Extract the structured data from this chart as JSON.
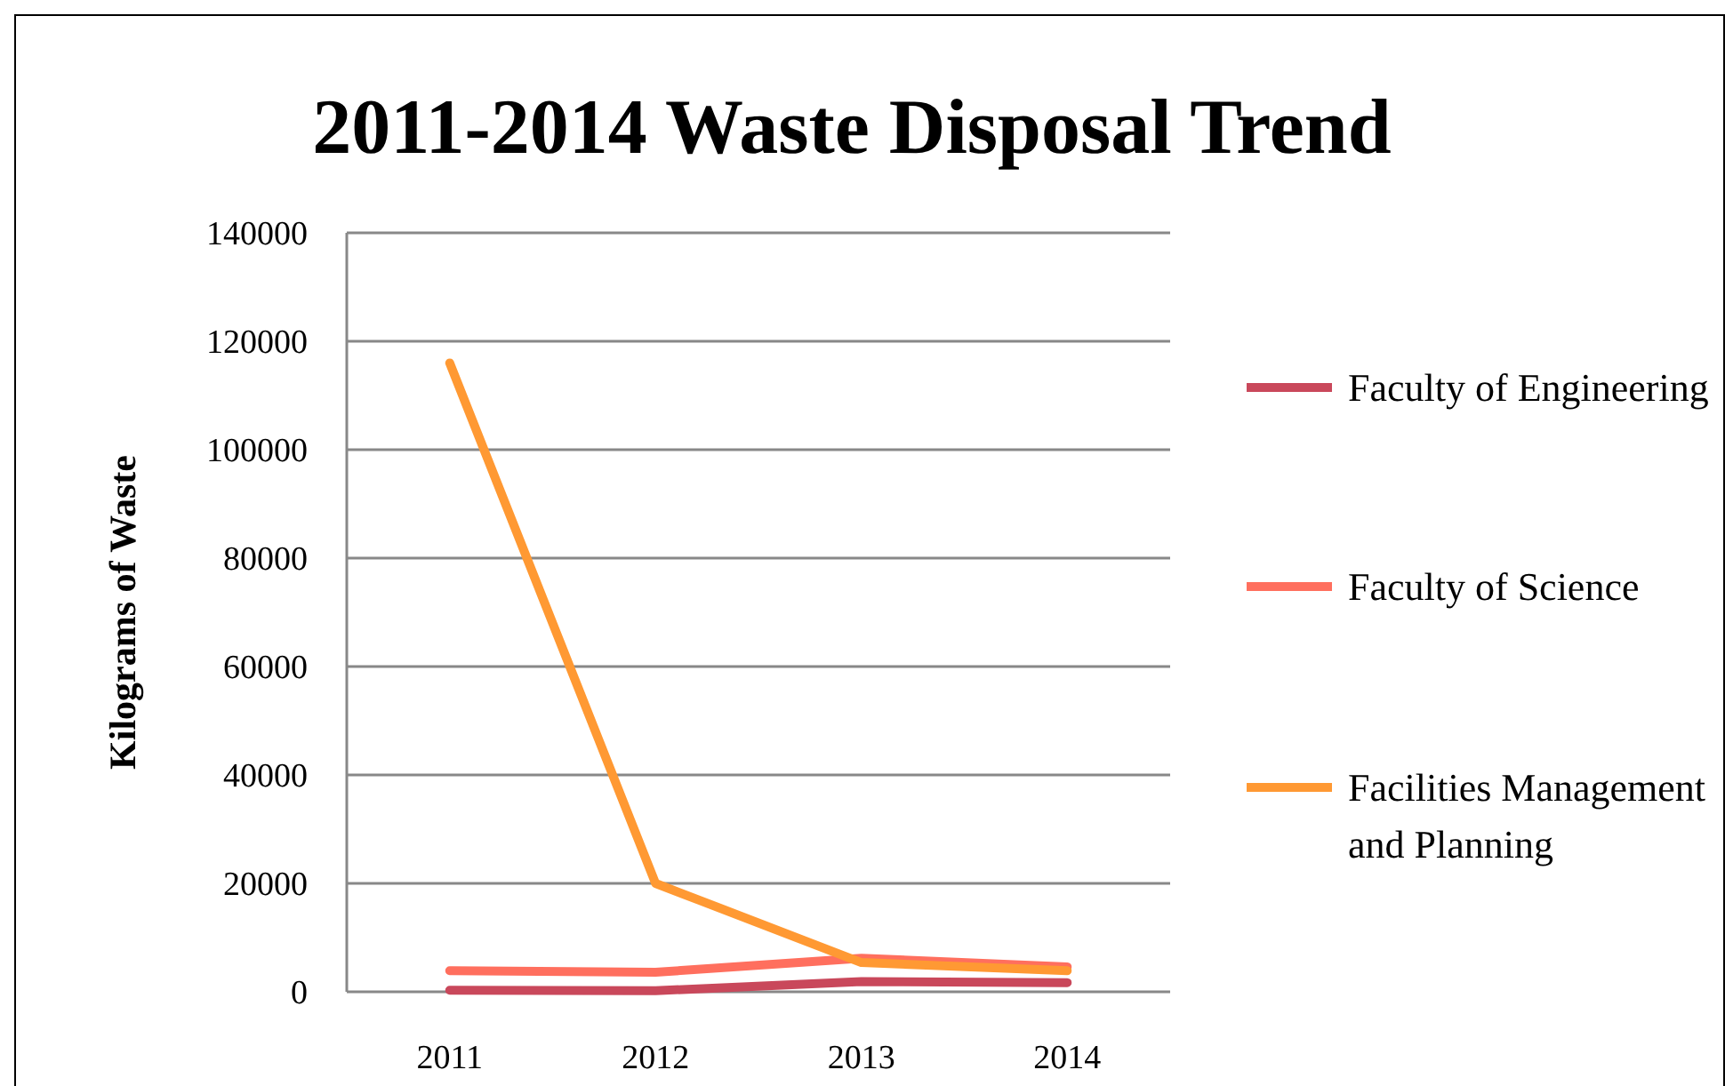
{
  "chart_data": {
    "type": "line",
    "title": "2011-2014 Waste Disposal Trend",
    "ylabel": "Kilograms of Waste",
    "categories": [
      "2011",
      "2012",
      "2013",
      "2014"
    ],
    "series": [
      {
        "name": "Faculty of Engineering",
        "color": "#c9485b",
        "values": [
          300,
          200,
          1900,
          1700
        ]
      },
      {
        "name": "Faculty of Science",
        "color": "#ff6f5e",
        "values": [
          3900,
          3600,
          6200,
          4600
        ]
      },
      {
        "name": "Facilities Management and Planning",
        "color": "#ff9933",
        "values": [
          116000,
          20000,
          5400,
          3900
        ]
      }
    ],
    "ylim": [
      0,
      140000
    ],
    "yticks": [
      0,
      20000,
      40000,
      60000,
      80000,
      100000,
      120000,
      140000
    ],
    "grid": "y",
    "legend": "right",
    "marker": "none",
    "line_style": "solid"
  }
}
